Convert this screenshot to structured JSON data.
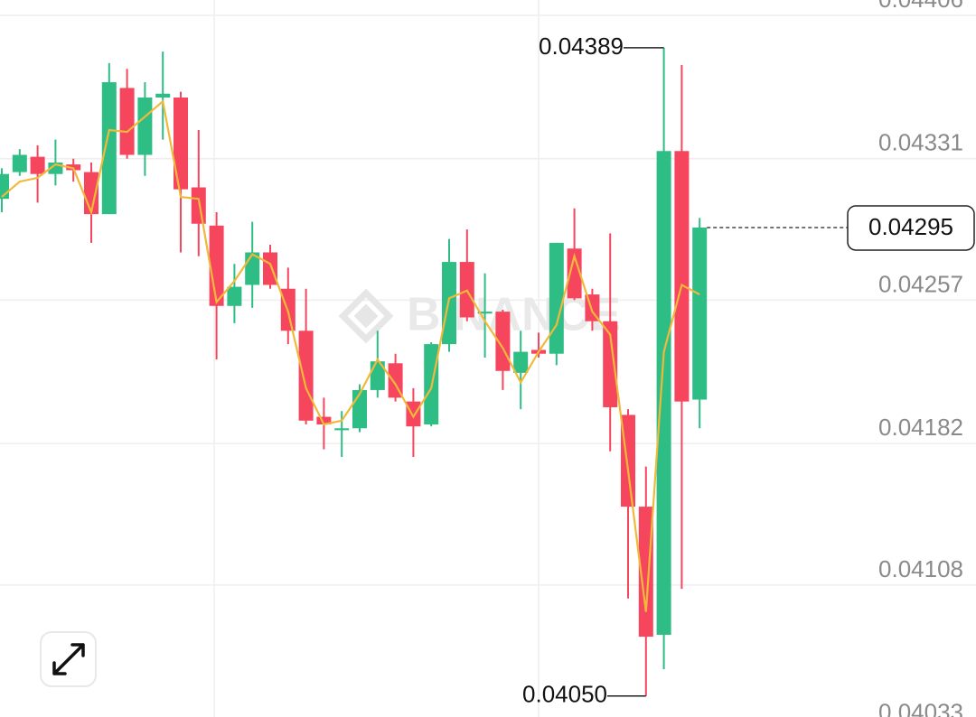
{
  "chart_data": {
    "type": "candlestick",
    "watermark": "BINANCE",
    "up_color": "#2ebd85",
    "down_color": "#f6465d",
    "open": [
      0.0431,
      0.04324,
      0.04332,
      0.04323,
      0.04328,
      0.04324,
      0.04302,
      0.04368,
      0.04333,
      0.04363,
      0.04363,
      0.04316,
      0.04296,
      0.04254,
      0.04265,
      0.04282,
      0.04263,
      0.04241,
      0.04196,
      0.04189,
      0.0419,
      0.0421,
      0.04224,
      0.04204,
      0.04192,
      0.04234,
      0.04277,
      0.0425,
      0.04251,
      0.04219,
      0.04231,
      0.04229,
      0.04284,
      0.0426,
      0.04246,
      0.04197,
      0.04149,
      0.04082,
      0.04335,
      0.04205
    ],
    "high": [
      0.04326,
      0.04336,
      0.04338,
      0.04341,
      0.04331,
      0.04329,
      0.04381,
      0.04378,
      0.04371,
      0.04387,
      0.04366,
      0.04346,
      0.04303,
      0.04276,
      0.04298,
      0.04286,
      0.04274,
      0.04263,
      0.04206,
      0.04199,
      0.04213,
      0.04241,
      0.04229,
      0.04211,
      0.04235,
      0.04289,
      0.04294,
      0.04271,
      0.04252,
      0.04241,
      0.0424,
      0.04287,
      0.04305,
      0.04263,
      0.04292,
      0.042,
      0.0417,
      0.04389,
      0.0438,
      0.043
    ],
    "low": [
      0.04303,
      0.04322,
      0.04308,
      0.04317,
      0.04319,
      0.04287,
      0.04302,
      0.04331,
      0.04322,
      0.04341,
      0.04282,
      0.0428,
      0.04226,
      0.04245,
      0.04253,
      0.04263,
      0.04234,
      0.04192,
      0.04179,
      0.04175,
      0.04188,
      0.04206,
      0.04204,
      0.04175,
      0.04191,
      0.0423,
      0.04246,
      0.04227,
      0.0421,
      0.042,
      0.04227,
      0.04223,
      0.04257,
      0.04241,
      0.04178,
      0.04101,
      0.0405,
      0.04064,
      0.04106,
      0.0419
    ],
    "close": [
      0.04323,
      0.04333,
      0.04323,
      0.04329,
      0.04325,
      0.04302,
      0.04371,
      0.04333,
      0.04363,
      0.04365,
      0.04315,
      0.04297,
      0.04254,
      0.04264,
      0.04282,
      0.04265,
      0.04241,
      0.04194,
      0.04192,
      0.0419,
      0.0421,
      0.04225,
      0.04206,
      0.04191,
      0.04234,
      0.04277,
      0.04248,
      0.04251,
      0.0422,
      0.0423,
      0.04229,
      0.04287,
      0.04258,
      0.04246,
      0.04201,
      0.04149,
      0.04081,
      0.04335,
      0.04204,
      0.04295
    ],
    "ma": {
      "color": "#f0b93a",
      "values": [
        0.04311,
        0.04319,
        0.04321,
        0.04328,
        0.04326,
        0.04303,
        0.04346,
        0.04345,
        0.04353,
        0.04361,
        0.04311,
        0.0431,
        0.04256,
        0.04267,
        0.04281,
        0.04276,
        0.04251,
        0.04211,
        0.04192,
        0.04194,
        0.04208,
        0.04226,
        0.04213,
        0.04196,
        0.04211,
        0.04258,
        0.04262,
        0.04246,
        0.04232,
        0.04214,
        0.0423,
        0.04244,
        0.0428,
        0.04251,
        0.04239,
        0.04168,
        0.04094,
        0.0423,
        0.04265,
        0.0426
      ]
    },
    "annotations": {
      "high": "0.04389",
      "low": "0.04050",
      "last": "0.04295"
    },
    "ylim": [
      0.04039,
      0.04414
    ],
    "yticks": [
      0.04406,
      0.04331,
      0.04257,
      0.04182,
      0.04108,
      0.04033
    ],
    "grid": true
  }
}
